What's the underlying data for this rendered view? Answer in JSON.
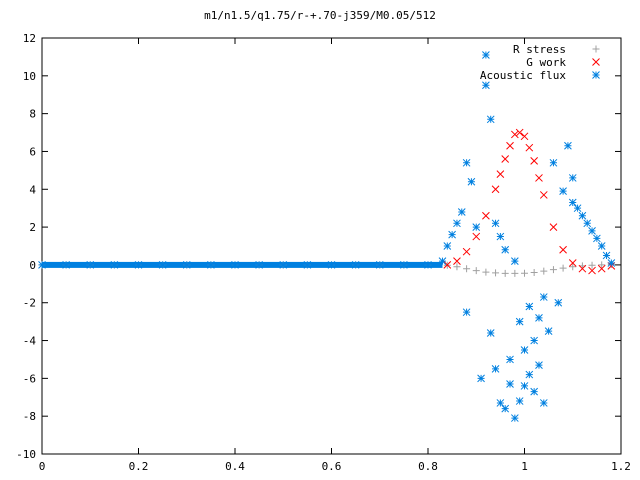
{
  "chart_data": {
    "type": "scatter",
    "title": "m1/n1.5/q1.75/r-+.70-j359/M0.05/512",
    "xlabel": "",
    "ylabel": "",
    "xlim": [
      0,
      1.2
    ],
    "ylim": [
      -10,
      12
    ],
    "x_ticks": [
      "0",
      "0.2",
      "0.4",
      "0.6",
      "0.8",
      "1",
      "1.2"
    ],
    "y_ticks": [
      "-10",
      "-8",
      "-6",
      "-4",
      "-2",
      "0",
      "2",
      "4",
      "6",
      "8",
      "10",
      "12"
    ],
    "grid": false,
    "legend_position": "top-right",
    "series": [
      {
        "name": "R stress",
        "marker": "plus",
        "color": "#a0a0a0",
        "x": [
          0.0,
          0.05,
          0.1,
          0.15,
          0.2,
          0.25,
          0.3,
          0.35,
          0.4,
          0.45,
          0.5,
          0.55,
          0.6,
          0.65,
          0.7,
          0.75,
          0.8,
          0.84,
          0.86,
          0.88,
          0.9,
          0.92,
          0.94,
          0.96,
          0.98,
          1.0,
          1.02,
          1.04,
          1.06,
          1.08,
          1.1,
          1.12,
          1.14,
          1.16,
          1.18
        ],
        "y": [
          0.0,
          0.0,
          0.0,
          0.0,
          0.0,
          0.0,
          0.0,
          0.0,
          0.0,
          0.0,
          0.0,
          0.0,
          0.0,
          0.0,
          0.0,
          0.0,
          0.0,
          -0.02,
          -0.1,
          -0.2,
          -0.3,
          -0.38,
          -0.42,
          -0.45,
          -0.45,
          -0.44,
          -0.4,
          -0.33,
          -0.25,
          -0.17,
          -0.1,
          -0.05,
          -0.02,
          0.0,
          0.02
        ]
      },
      {
        "name": "G work",
        "marker": "cross",
        "color": "#ff0000",
        "x": [
          0.84,
          0.86,
          0.88,
          0.9,
          0.92,
          0.94,
          0.95,
          0.96,
          0.97,
          0.98,
          0.99,
          1.0,
          1.01,
          1.02,
          1.03,
          1.04,
          1.06,
          1.08,
          1.1,
          1.12,
          1.14,
          1.16,
          1.18
        ],
        "y": [
          0.0,
          0.2,
          0.7,
          1.5,
          2.6,
          4.0,
          4.8,
          5.6,
          6.3,
          6.9,
          7.0,
          6.8,
          6.2,
          5.5,
          4.6,
          3.7,
          2.0,
          0.8,
          0.1,
          -0.2,
          -0.3,
          -0.2,
          -0.05
        ]
      },
      {
        "name": "Acoustic flux",
        "marker": "star",
        "color": "#0080e0",
        "x": [
          0.0,
          0.05,
          0.1,
          0.15,
          0.2,
          0.25,
          0.3,
          0.35,
          0.4,
          0.45,
          0.5,
          0.55,
          0.6,
          0.65,
          0.7,
          0.75,
          0.8,
          0.83,
          0.84,
          0.85,
          0.86,
          0.87,
          0.88,
          0.88,
          0.89,
          0.9,
          0.91,
          0.92,
          0.92,
          0.93,
          0.93,
          0.94,
          0.94,
          0.95,
          0.95,
          0.96,
          0.96,
          0.97,
          0.97,
          0.98,
          0.98,
          0.99,
          0.99,
          1.0,
          1.0,
          1.01,
          1.01,
          1.02,
          1.02,
          1.03,
          1.03,
          1.04,
          1.04,
          1.05,
          1.06,
          1.07,
          1.08,
          1.09,
          1.1,
          1.1,
          1.11,
          1.12,
          1.13,
          1.14,
          1.15,
          1.16,
          1.17,
          1.18
        ],
        "y": [
          0.0,
          0.0,
          0.0,
          0.0,
          0.0,
          0.0,
          0.0,
          0.0,
          0.0,
          0.0,
          0.0,
          0.0,
          0.0,
          0.0,
          0.0,
          0.0,
          0.0,
          0.2,
          1.0,
          1.6,
          2.2,
          2.8,
          5.4,
          -2.5,
          4.4,
          2.0,
          -6.0,
          9.5,
          11.1,
          -3.6,
          7.7,
          -5.5,
          2.2,
          -7.3,
          1.5,
          -7.6,
          0.8,
          -5.0,
          -6.3,
          -8.1,
          0.2,
          -3.0,
          -7.2,
          -4.5,
          -6.4,
          -5.8,
          -2.2,
          -6.7,
          -4.0,
          -5.3,
          -2.8,
          -7.3,
          -1.7,
          -3.5,
          5.4,
          -2.0,
          3.9,
          6.3,
          4.6,
          3.3,
          3.0,
          2.6,
          2.2,
          1.8,
          1.4,
          1.0,
          0.5,
          0.1
        ]
      }
    ]
  }
}
